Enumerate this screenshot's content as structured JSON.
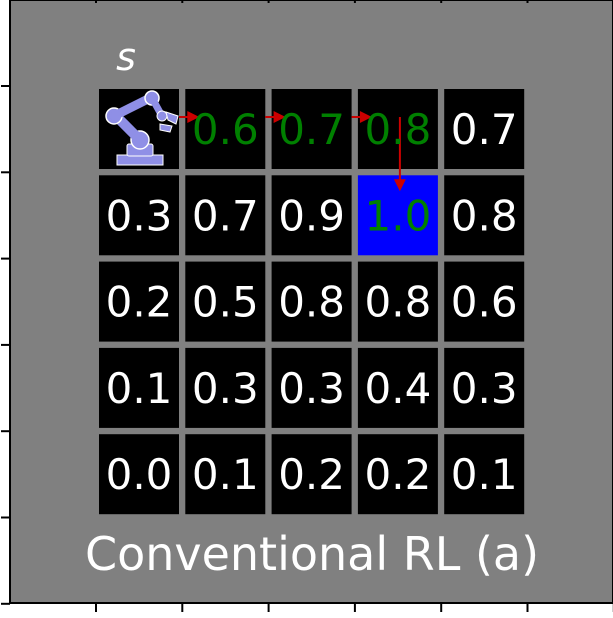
{
  "start_label": "s",
  "caption": "Conventional RL (a)",
  "icons": {
    "agent": "robot-arm-icon"
  },
  "colors": {
    "background": "#808080",
    "cell": "#000000",
    "goal_cell": "#0000ff",
    "value_text": "#ffffff",
    "path_text": "#008000",
    "path_arrow": "#cc0000",
    "robot": "#8f8fe6"
  },
  "grid": {
    "rows": [
      [
        "",
        "0.6",
        "0.7",
        "0.8",
        "0.7"
      ],
      [
        "0.3",
        "0.7",
        "0.9",
        "1.0",
        "0.8"
      ],
      [
        "0.2",
        "0.5",
        "0.8",
        "0.8",
        "0.6"
      ],
      [
        "0.1",
        "0.3",
        "0.3",
        "0.4",
        "0.3"
      ],
      [
        "0.0",
        "0.1",
        "0.2",
        "0.2",
        "0.1"
      ]
    ],
    "agent_cell": [
      0,
      0
    ],
    "goal_cell": [
      1,
      3
    ],
    "path_cells": [
      [
        0,
        1
      ],
      [
        0,
        2
      ],
      [
        0,
        3
      ],
      [
        1,
        3
      ]
    ]
  }
}
